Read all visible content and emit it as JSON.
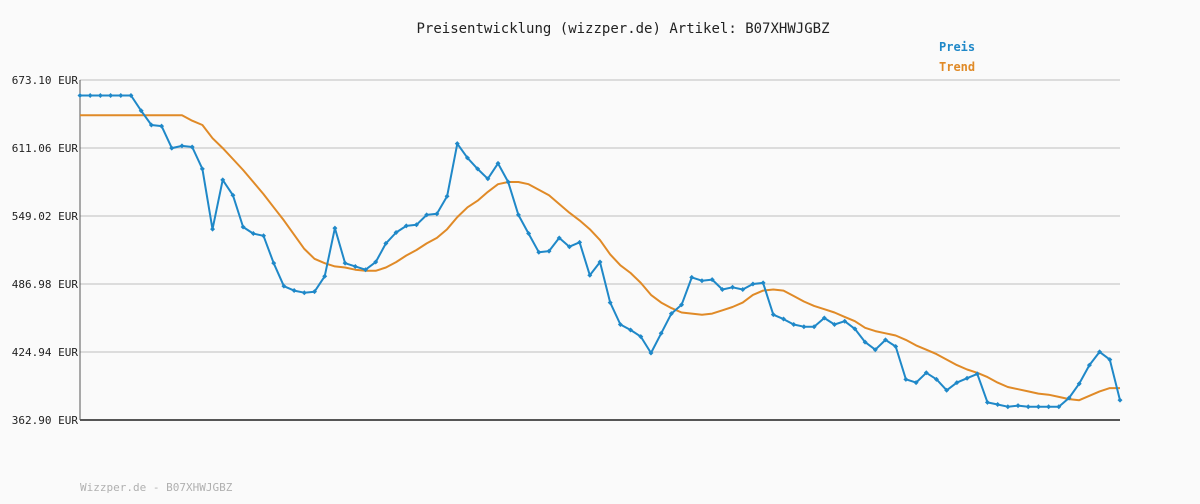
{
  "chart_data": {
    "type": "line",
    "title": "Preisentwicklung (wizzper.de) Artikel: B07XHWJGBZ",
    "footer": "Wizzper.de - B07XHWJGBZ",
    "ylim": [
      362.9,
      673.1
    ],
    "y_tick_labels": [
      "673.10 EUR",
      "611.06 EUR",
      "549.02 EUR",
      "486.98 EUR",
      "424.94 EUR",
      "362.90 EUR"
    ],
    "y_ticks": [
      673.1,
      611.06,
      549.02,
      486.98,
      424.94,
      362.9
    ],
    "grid": true,
    "legend_position": "top-right",
    "series": [
      {
        "name": "Preis",
        "color": "#1f88c8",
        "marker": "diamond",
        "values": [
          659,
          659,
          659,
          659,
          659,
          659,
          645,
          632,
          631,
          611,
          613,
          612,
          592,
          537,
          582,
          568,
          539,
          533,
          531,
          506,
          485,
          481,
          479,
          480,
          494,
          538,
          506,
          503,
          500,
          507,
          524,
          534,
          540,
          541,
          550,
          551,
          567,
          615,
          602,
          592,
          583,
          597,
          580,
          550,
          533,
          516,
          517,
          529,
          521,
          525,
          495,
          507,
          470,
          450,
          445,
          439,
          424,
          442,
          460,
          468,
          493,
          490,
          491,
          482,
          484,
          482,
          487,
          488,
          459,
          455,
          450,
          448,
          448,
          456,
          450,
          453,
          446,
          434,
          427,
          436,
          430,
          400,
          397,
          406,
          400,
          390,
          397,
          401,
          405,
          379,
          377,
          375,
          376,
          375,
          375,
          375,
          375,
          383,
          396,
          413,
          425,
          418,
          381
        ]
      },
      {
        "name": "Trend",
        "color": "#e08a27",
        "marker": "none",
        "values": [
          641,
          641,
          641,
          641,
          641,
          641,
          641,
          641,
          641,
          641,
          641,
          636,
          632,
          620,
          611,
          601,
          591,
          580,
          569,
          557,
          545,
          532,
          519,
          510,
          506,
          503,
          502,
          500,
          499,
          499,
          502,
          507,
          513,
          518,
          524,
          529,
          537,
          548,
          557,
          563,
          571,
          578,
          580,
          580,
          578,
          573,
          568,
          560,
          552,
          545,
          537,
          527,
          514,
          504,
          497,
          488,
          477,
          470,
          465,
          461,
          460,
          459,
          460,
          463,
          466,
          470,
          477,
          481,
          482,
          481,
          476,
          471,
          467,
          464,
          461,
          457,
          453,
          447,
          444,
          442,
          440,
          436,
          431,
          427,
          423,
          418,
          413,
          409,
          406,
          402,
          397,
          393,
          391,
          389,
          387,
          386,
          384,
          382,
          381,
          385,
          389,
          392,
          392
        ]
      }
    ]
  }
}
